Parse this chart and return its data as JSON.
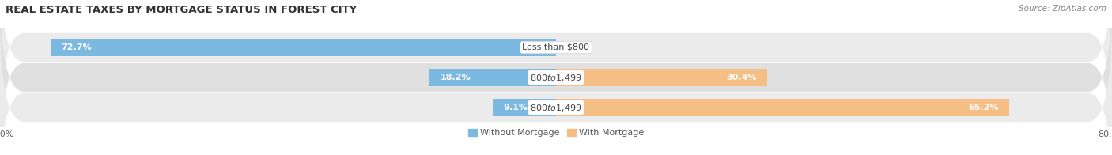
{
  "title": "REAL ESTATE TAXES BY MORTGAGE STATUS IN FOREST CITY",
  "source": "Source: ZipAtlas.com",
  "rows": [
    {
      "label": "Less than $800",
      "without": 72.7,
      "with": 0.0
    },
    {
      "label": "$800 to $1,499",
      "without": 18.2,
      "with": 30.4
    },
    {
      "label": "$800 to $1,499",
      "without": 9.1,
      "with": 65.2
    }
  ],
  "xlim": 80.0,
  "color_without": "#7CB9E0",
  "color_with": "#F5BE84",
  "bar_height": 0.58,
  "row_bg": "#EBEBEB",
  "row_bg_alt": "#E0E0E0",
  "title_fontsize": 9.5,
  "label_fontsize": 8.0,
  "tick_fontsize": 8.0,
  "source_fontsize": 7.5,
  "legend_fontsize": 8.0,
  "value_fontsize": 8.0
}
